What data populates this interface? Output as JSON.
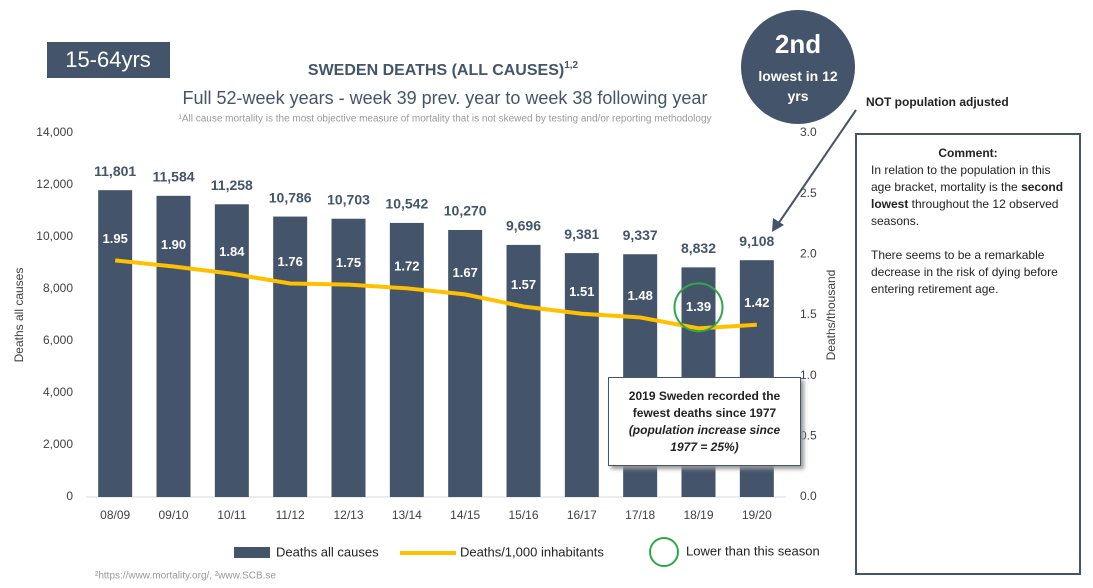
{
  "badge": "15-64yrs",
  "rank_badge": {
    "rank": "2nd",
    "text": "lowest in 12 yrs"
  },
  "arrow_note": "NOT population adjusted",
  "comment": {
    "heading": "Comment:",
    "paragraph1": [
      "In relation to the population in this age bracket, mortality is the ",
      "second lowest",
      " throughout the 12 observed seasons."
    ],
    "paragraph2": "There seems to be a remarkable decrease in the risk of dying before entering retirement age."
  },
  "callout": {
    "text": "2019 Sweden recorded the fewest deaths since 1977",
    "note": "(population increase since 1977 = 25%)"
  },
  "source": "²https://www.mortality.org/, ²www.SCB.se",
  "chart_data": {
    "type": "bar",
    "title": "SWEDEN DEATHS (ALL CAUSES)",
    "title_superscript": "1,2",
    "subtitle": "Full 52-week years - week 39 prev. year to week 38 following year",
    "footnote": "¹All cause mortality is the most objective measure of mortality that is not skewed by testing and/or reporting methodology",
    "y_label": "Deaths all causes",
    "y2_label": "Deaths/thousand",
    "categories": [
      "08/09",
      "09/10",
      "10/11",
      "11/12",
      "12/13",
      "13/14",
      "14/15",
      "15/16",
      "16/17",
      "17/18",
      "18/19",
      "19/20"
    ],
    "series": [
      {
        "name": "Deaths all causes",
        "type": "bar",
        "color": "#44546a",
        "values": [
          11801,
          11584,
          11258,
          10786,
          10703,
          10542,
          10270,
          9696,
          9381,
          9337,
          8832,
          9108
        ],
        "value_labels": [
          "11,801",
          "11,584",
          "11,258",
          "10,786",
          "10,703",
          "10,542",
          "10,270",
          "9,696",
          "9,381",
          "9,337",
          "8,832",
          "9,108"
        ]
      },
      {
        "name": "Deaths/1,000 inhabitants",
        "type": "line",
        "axis": "y2",
        "color": "#ffc000",
        "values": [
          1.95,
          1.9,
          1.84,
          1.76,
          1.75,
          1.72,
          1.67,
          1.57,
          1.51,
          1.48,
          1.39,
          1.42
        ],
        "value_labels": [
          "1.95",
          "1.90",
          "1.84",
          "1.76",
          "1.75",
          "1.72",
          "1.67",
          "1.57",
          "1.51",
          "1.48",
          "1.39",
          "1.42"
        ]
      }
    ],
    "ylim": [
      0,
      14000
    ],
    "yticks": [
      0,
      {
        "value": 2000,
        "label": "2,000"
      },
      {
        "value": 4000,
        "label": "4,000"
      },
      {
        "value": 6000,
        "label": "6,000"
      },
      {
        "value": 8000,
        "label": "8,000"
      },
      {
        "value": 10000,
        "label": "10,000"
      },
      {
        "value": 12000,
        "label": "12,000"
      },
      {
        "value": 14000,
        "label": "14,000"
      }
    ],
    "y2lim": [
      0,
      3
    ],
    "y2ticks": [
      {
        "value": 0,
        "label": "0.0"
      },
      0.5,
      {
        "value": 1,
        "label": "1.0"
      },
      1.5,
      {
        "value": 2,
        "label": "2.0"
      },
      2.5,
      {
        "value": 3,
        "label": "3.0"
      }
    ],
    "highlight": {
      "category_index": 10,
      "label": "Lower than this season",
      "color": "#2ea84a"
    }
  }
}
